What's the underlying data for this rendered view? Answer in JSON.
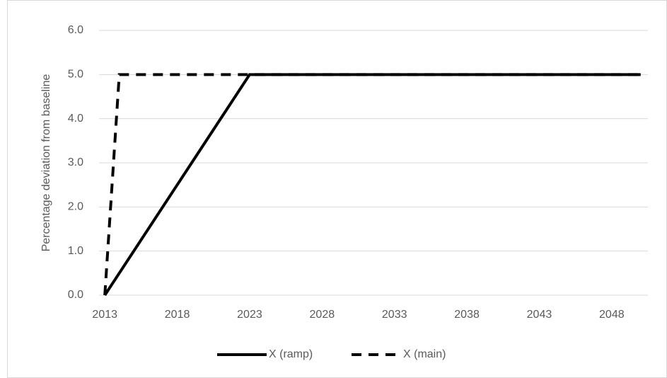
{
  "chart_data": {
    "type": "line",
    "y_label": "Percentage deviation from baseline",
    "x": [
      2013,
      2014,
      2023,
      2050
    ],
    "series": [
      {
        "name": "X (ramp)",
        "color": "#000000",
        "dash": "solid",
        "values": [
          0,
          0.5,
          5,
          5
        ]
      },
      {
        "name": "X (main)",
        "color": "#000000",
        "dash": "dashed",
        "values": [
          0,
          5,
          5,
          5
        ]
      }
    ],
    "xlim": [
      2012.6,
      2050.5
    ],
    "xticks": [
      2013,
      2018,
      2023,
      2028,
      2033,
      2038,
      2043,
      2048
    ],
    "ylim": [
      0,
      6
    ],
    "yticks": [
      {
        "value": 0,
        "label": "0.0"
      },
      {
        "value": 1,
        "label": "1.0"
      },
      {
        "value": 2,
        "label": "2.0"
      },
      {
        "value": 3,
        "label": "3.0"
      },
      {
        "value": 4,
        "label": "4.0"
      },
      {
        "value": 5,
        "label": "5.0"
      },
      {
        "value": 6,
        "label": "6.0"
      }
    ],
    "grid": true,
    "legend": "bottom"
  }
}
